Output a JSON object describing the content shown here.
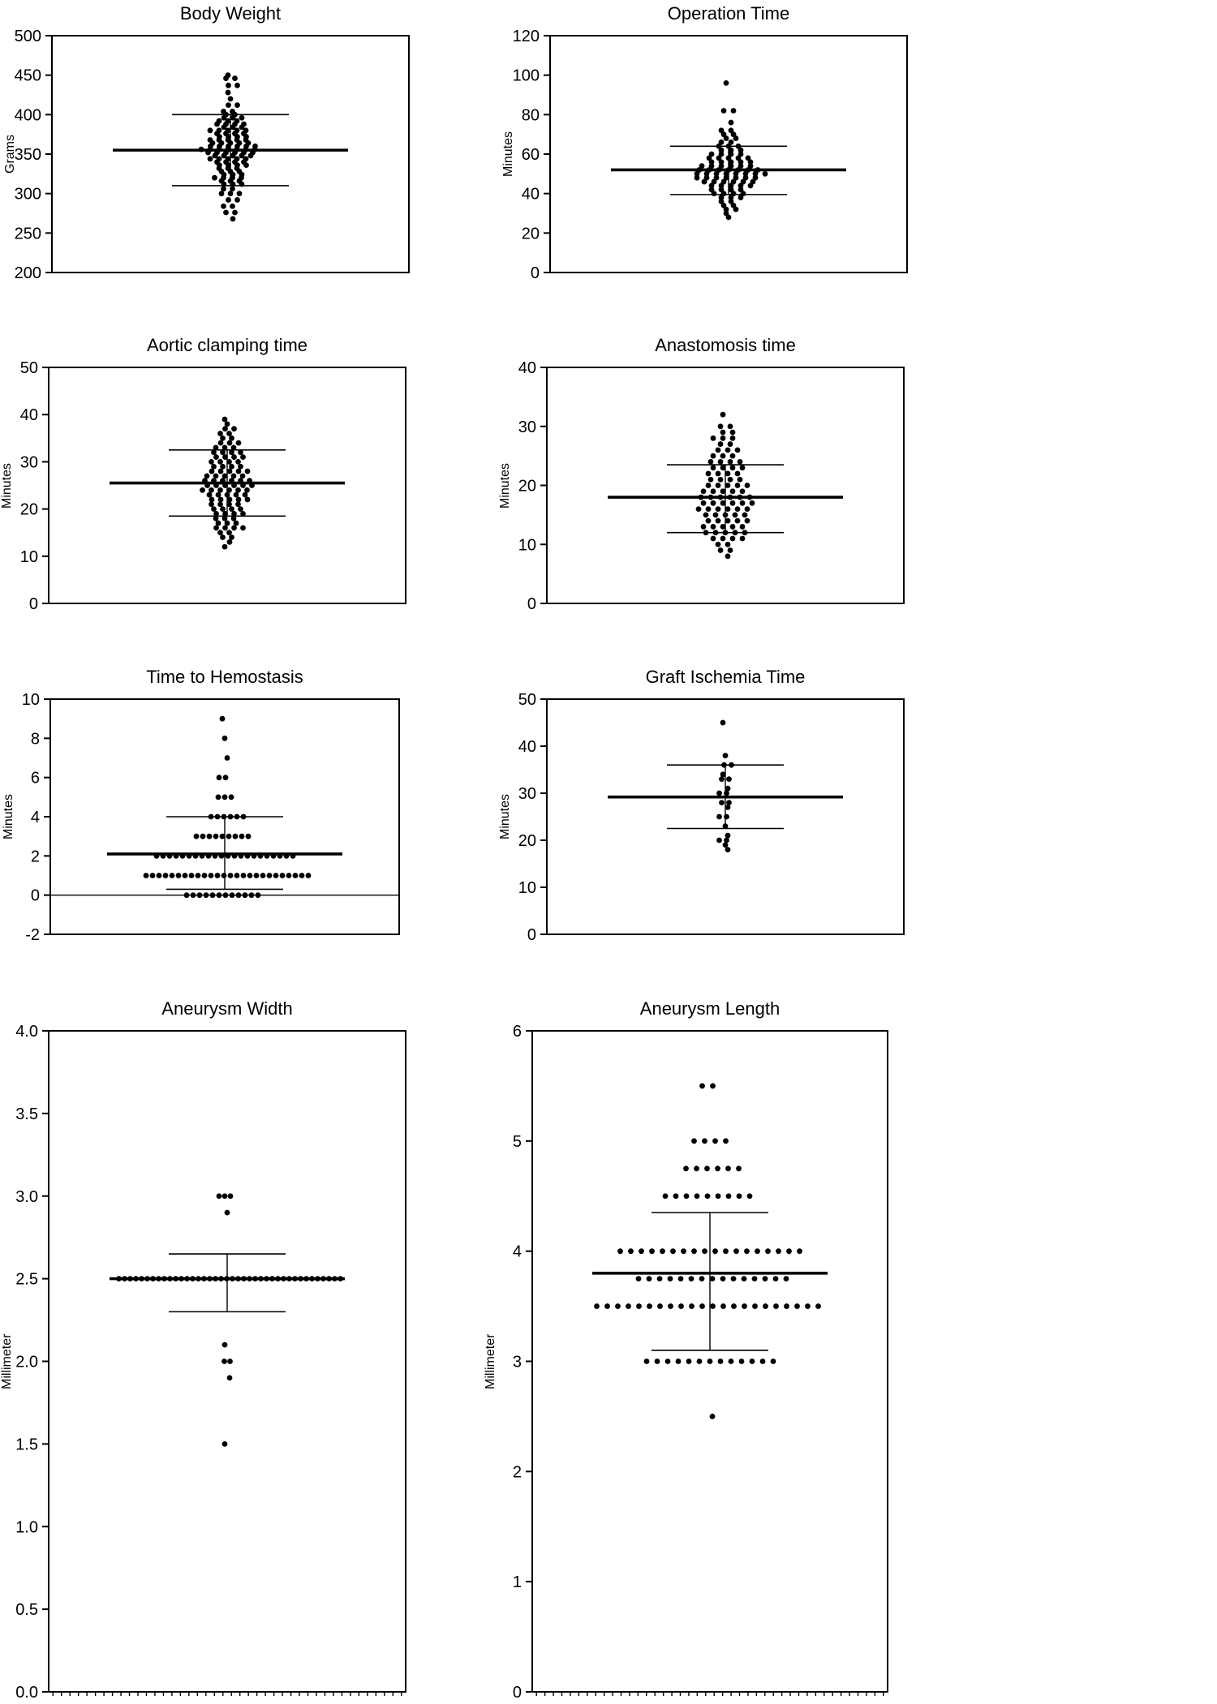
{
  "figure": {
    "background": "#ffffff",
    "ink": "#000000",
    "description": "Eight column scatter plots with mean and standard-deviation bars"
  },
  "chart_data": [
    {
      "type": "scatter",
      "variant": "column-scatter-mean-sd",
      "title": "Body Weight",
      "ylabel": "Grams",
      "ylim": [
        200,
        500
      ],
      "yticks": [
        200,
        250,
        300,
        350,
        400,
        450,
        500
      ],
      "ytick_decimals": 0,
      "mean": 355,
      "sd_low": 310,
      "sd_high": 400,
      "value_counts": [
        [
          450,
          1
        ],
        [
          446,
          2
        ],
        [
          437,
          2
        ],
        [
          428,
          1
        ],
        [
          420,
          1
        ],
        [
          412,
          2
        ],
        [
          404,
          2
        ],
        [
          400,
          2
        ],
        [
          396,
          3
        ],
        [
          392,
          3
        ],
        [
          388,
          4
        ],
        [
          384,
          3
        ],
        [
          380,
          5
        ],
        [
          376,
          4
        ],
        [
          372,
          4
        ],
        [
          368,
          5
        ],
        [
          364,
          5
        ],
        [
          360,
          6
        ],
        [
          356,
          7
        ],
        [
          352,
          6
        ],
        [
          348,
          5
        ],
        [
          344,
          5
        ],
        [
          340,
          4
        ],
        [
          336,
          4
        ],
        [
          332,
          3
        ],
        [
          328,
          3
        ],
        [
          324,
          3
        ],
        [
          320,
          4
        ],
        [
          316,
          3
        ],
        [
          312,
          3
        ],
        [
          306,
          2
        ],
        [
          300,
          3
        ],
        [
          292,
          2
        ],
        [
          284,
          2
        ],
        [
          276,
          2
        ],
        [
          268,
          1
        ]
      ]
    },
    {
      "type": "scatter",
      "variant": "column-scatter-mean-sd",
      "title": "Operation Time",
      "ylabel": "Minutes",
      "ylim": [
        0,
        120
      ],
      "yticks": [
        0,
        20,
        40,
        60,
        80,
        100,
        120
      ],
      "ytick_decimals": 0,
      "mean": 52,
      "sd_low": 39.5,
      "sd_high": 64,
      "value_counts": [
        [
          96,
          1
        ],
        [
          82,
          2
        ],
        [
          76,
          1
        ],
        [
          72,
          2
        ],
        [
          70,
          2
        ],
        [
          68,
          2
        ],
        [
          66,
          2
        ],
        [
          64,
          3
        ],
        [
          62,
          3
        ],
        [
          60,
          4
        ],
        [
          58,
          5
        ],
        [
          56,
          5
        ],
        [
          54,
          6
        ],
        [
          52,
          7
        ],
        [
          50,
          8
        ],
        [
          48,
          7
        ],
        [
          46,
          6
        ],
        [
          44,
          5
        ],
        [
          42,
          4
        ],
        [
          40,
          4
        ],
        [
          38,
          3
        ],
        [
          36,
          2
        ],
        [
          34,
          2
        ],
        [
          32,
          2
        ],
        [
          30,
          1
        ],
        [
          28,
          1
        ]
      ]
    },
    {
      "type": "scatter",
      "variant": "column-scatter-mean-sd",
      "title": "Aortic clamping time",
      "ylabel": "Minutes",
      "ylim": [
        0,
        50
      ],
      "yticks": [
        0,
        10,
        20,
        30,
        40,
        50
      ],
      "ytick_decimals": 0,
      "mean": 25.5,
      "sd_low": 18.5,
      "sd_high": 32.5,
      "value_counts": [
        [
          39,
          1
        ],
        [
          38,
          1
        ],
        [
          37,
          2
        ],
        [
          36,
          2
        ],
        [
          35,
          2
        ],
        [
          34,
          3
        ],
        [
          33,
          3
        ],
        [
          32,
          4
        ],
        [
          31,
          4
        ],
        [
          30,
          4
        ],
        [
          29,
          4
        ],
        [
          28,
          5
        ],
        [
          27,
          5
        ],
        [
          26,
          6
        ],
        [
          25,
          6
        ],
        [
          24,
          6
        ],
        [
          23,
          5
        ],
        [
          22,
          5
        ],
        [
          21,
          4
        ],
        [
          20,
          4
        ],
        [
          19,
          4
        ],
        [
          18,
          3
        ],
        [
          17,
          3
        ],
        [
          16,
          4
        ],
        [
          15,
          2
        ],
        [
          14,
          2
        ],
        [
          13,
          1
        ],
        [
          12,
          1
        ]
      ]
    },
    {
      "type": "scatter",
      "variant": "column-scatter-mean-sd",
      "title": "Anastomosis time",
      "ylabel": "Minutes",
      "ylim": [
        0,
        40
      ],
      "yticks": [
        0,
        10,
        20,
        30,
        40
      ],
      "ytick_decimals": 0,
      "mean": 18,
      "sd_low": 12,
      "sd_high": 23.5,
      "value_counts": [
        [
          32,
          1
        ],
        [
          30,
          2
        ],
        [
          29,
          2
        ],
        [
          28,
          3
        ],
        [
          27,
          2
        ],
        [
          26,
          3
        ],
        [
          25,
          3
        ],
        [
          24,
          4
        ],
        [
          23,
          4
        ],
        [
          22,
          4
        ],
        [
          21,
          4
        ],
        [
          20,
          5
        ],
        [
          19,
          5
        ],
        [
          18,
          6
        ],
        [
          17,
          6
        ],
        [
          16,
          6
        ],
        [
          15,
          5
        ],
        [
          14,
          5
        ],
        [
          13,
          5
        ],
        [
          12,
          5
        ],
        [
          11,
          4
        ],
        [
          10,
          2
        ],
        [
          9,
          2
        ],
        [
          8,
          1
        ]
      ]
    },
    {
      "type": "scatter",
      "variant": "column-scatter-mean-sd",
      "title": "Time to Hemostasis",
      "ylabel": "Minutes",
      "ylim": [
        -2,
        10
      ],
      "yticks": [
        -2,
        0,
        2,
        4,
        6,
        8,
        10
      ],
      "ytick_decimals": 0,
      "zero_line": true,
      "mean": 2.1,
      "sd_low": 0.3,
      "sd_high": 4.0,
      "value_counts": [
        [
          9,
          1
        ],
        [
          8,
          1
        ],
        [
          7,
          1
        ],
        [
          6,
          2
        ],
        [
          5,
          3
        ],
        [
          4,
          6
        ],
        [
          3,
          9
        ],
        [
          2,
          22
        ],
        [
          1,
          26
        ],
        [
          0,
          12
        ]
      ]
    },
    {
      "type": "scatter",
      "variant": "column-scatter-mean-sd",
      "title": "Graft Ischemia Time",
      "ylabel": "Minutes",
      "ylim": [
        0,
        50
      ],
      "yticks": [
        0,
        10,
        20,
        30,
        40,
        50
      ],
      "ytick_decimals": 0,
      "mean": 29.2,
      "sd_low": 22.5,
      "sd_high": 36,
      "value_counts": [
        [
          45,
          1
        ],
        [
          38,
          1
        ],
        [
          36,
          2
        ],
        [
          34,
          1
        ],
        [
          33,
          2
        ],
        [
          31,
          1
        ],
        [
          30,
          2
        ],
        [
          28,
          2
        ],
        [
          27,
          1
        ],
        [
          25,
          2
        ],
        [
          23,
          1
        ],
        [
          21,
          1
        ],
        [
          20,
          2
        ],
        [
          19,
          1
        ],
        [
          18,
          1
        ]
      ]
    },
    {
      "type": "scatter",
      "variant": "column-scatter-mean-sd",
      "title": "Aneurysm Width",
      "ylabel": "Millimeter",
      "ylim": [
        0,
        4
      ],
      "yticks": [
        0,
        0.5,
        1.0,
        1.5,
        2.0,
        2.5,
        3.0,
        3.5,
        4.0
      ],
      "ytick_decimals": 1,
      "mean": 2.5,
      "sd_low": 2.3,
      "sd_high": 2.65,
      "value_counts": [
        [
          3.0,
          3
        ],
        [
          2.9,
          1
        ],
        [
          2.5,
          40
        ],
        [
          2.1,
          1
        ],
        [
          2.0,
          2
        ],
        [
          1.9,
          1
        ],
        [
          1.5,
          1
        ]
      ]
    },
    {
      "type": "scatter",
      "variant": "column-scatter-mean-sd",
      "title": "Aneurysm Length",
      "ylabel": "Millimeter",
      "ylim": [
        0,
        6
      ],
      "yticks": [
        0,
        1,
        2,
        3,
        4,
        5,
        6
      ],
      "ytick_decimals": 0,
      "mean": 3.8,
      "sd_low": 3.1,
      "sd_high": 4.35,
      "value_counts": [
        [
          5.5,
          2
        ],
        [
          5.0,
          4
        ],
        [
          4.75,
          6
        ],
        [
          4.5,
          9
        ],
        [
          4.0,
          18
        ],
        [
          3.75,
          15
        ],
        [
          3.5,
          22
        ],
        [
          3.0,
          13
        ],
        [
          2.5,
          1
        ]
      ]
    }
  ]
}
